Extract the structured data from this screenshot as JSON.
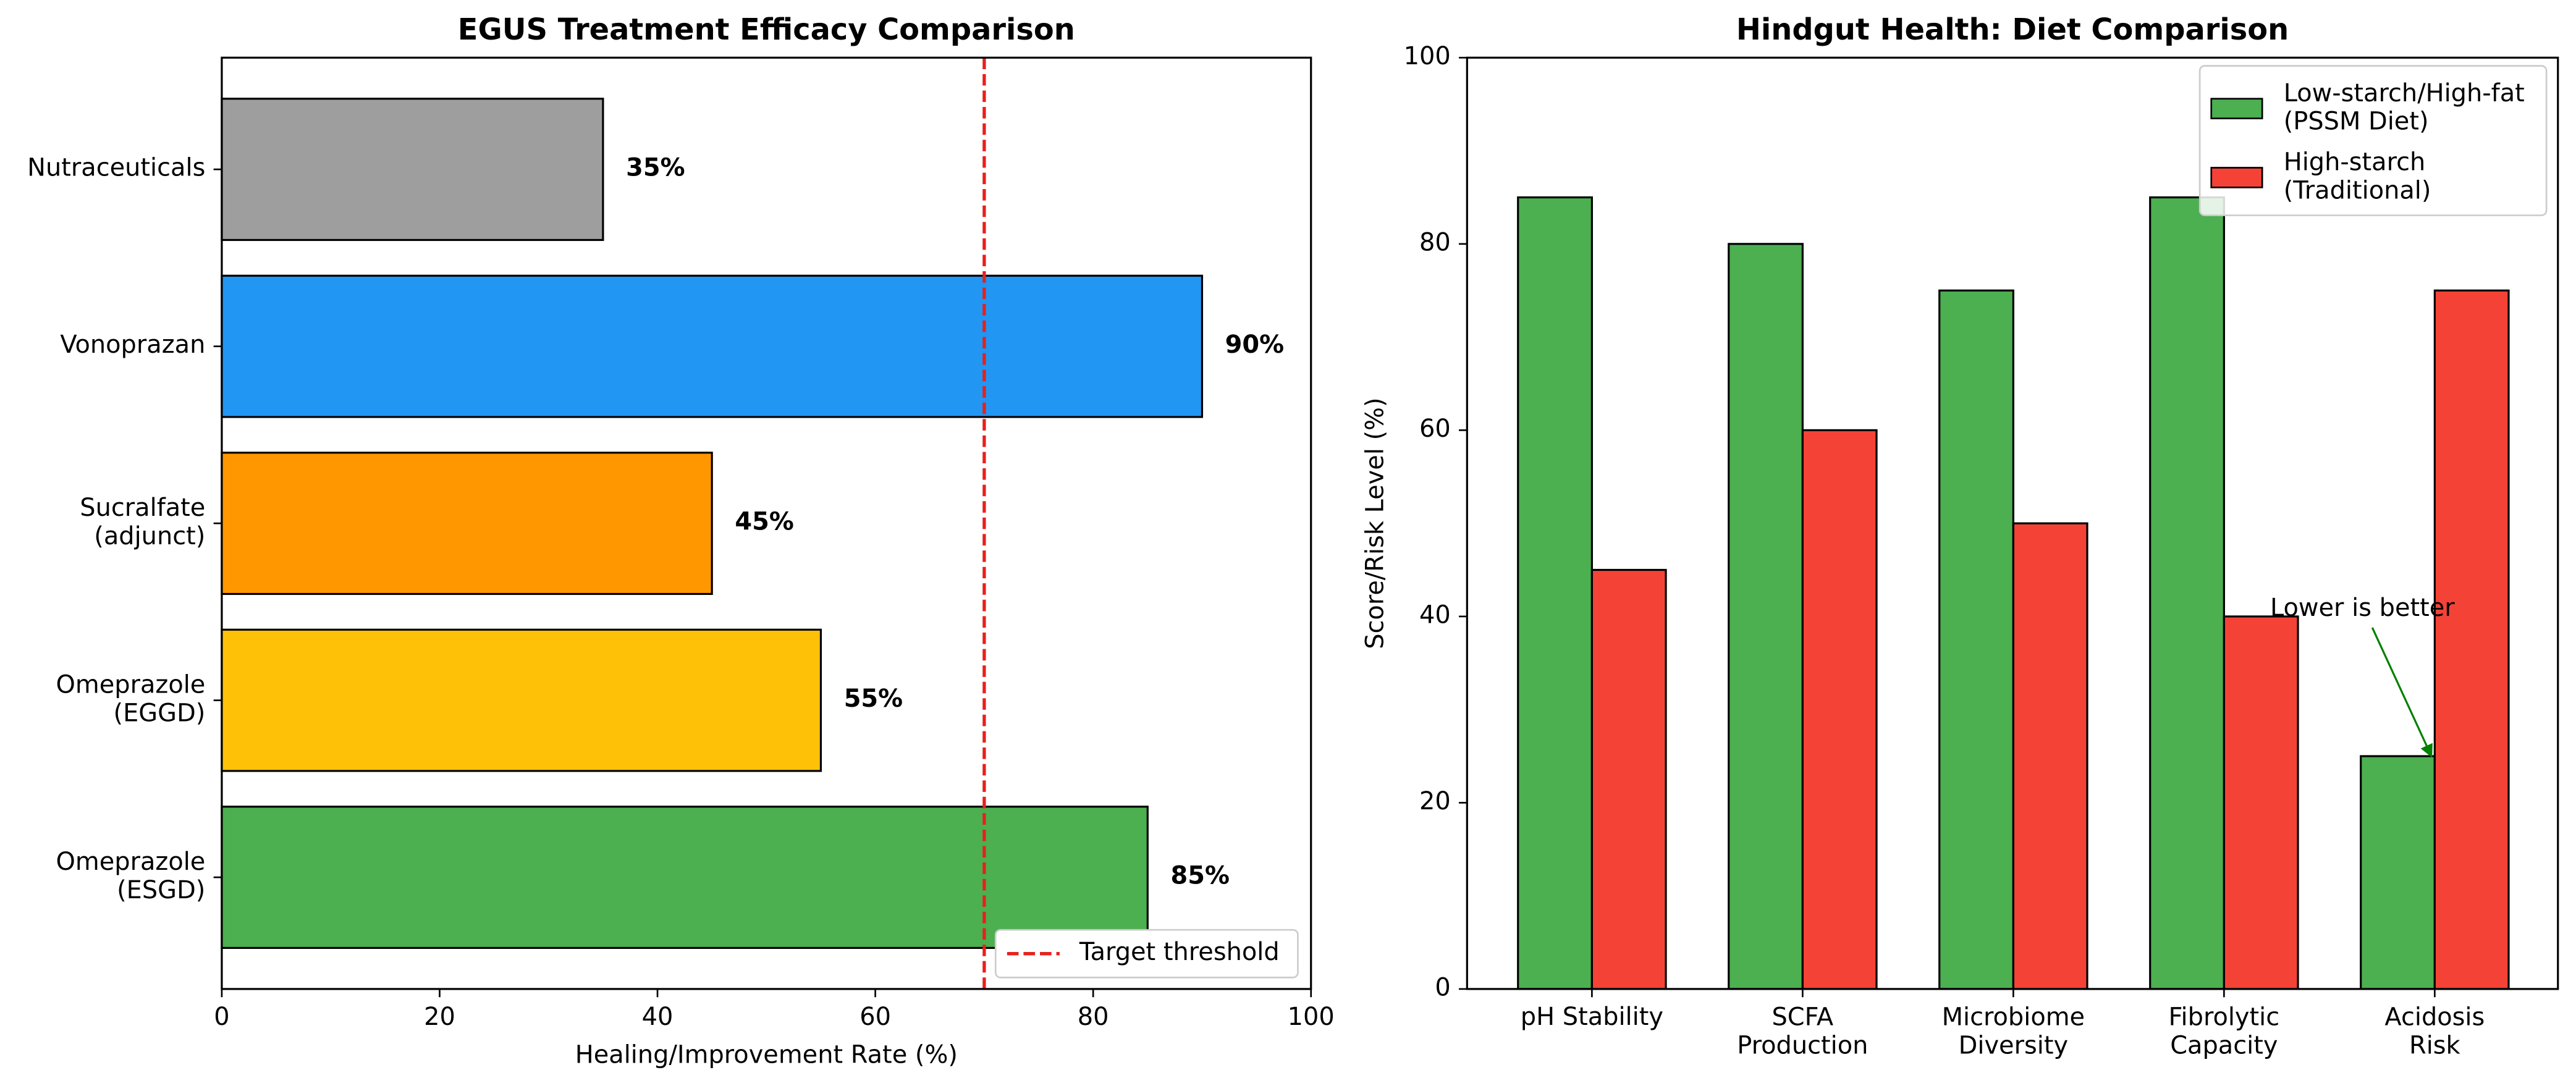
{
  "chart_data": [
    {
      "type": "bar",
      "horizontal": true,
      "title": "EGUS Treatment Efficacy Comparison",
      "categories": [
        "Omeprazole\n(ESGD)",
        "Omeprazole\n(EGGD)",
        "Sucralfate\n(adjunct)",
        "Vonoprazan",
        "Nutraceuticals"
      ],
      "values": [
        85,
        55,
        45,
        90,
        35
      ],
      "value_labels": [
        "85%",
        "55%",
        "45%",
        "90%",
        "35%"
      ],
      "colors": [
        "#4caf50",
        "#ffc107",
        "#ff9800",
        "#2196f3",
        "#9e9e9e"
      ],
      "xlabel": "Healing/Improvement Rate (%)",
      "xlim": [
        0,
        100
      ],
      "xticks": [
        0,
        20,
        40,
        60,
        80,
        100
      ],
      "reference_line": {
        "value": 70,
        "label": "Target threshold",
        "color": "#e8201c"
      },
      "legend": "lower right"
    },
    {
      "type": "bar",
      "title": "Hindgut Health: Diet Comparison",
      "categories": [
        "pH Stability",
        "SCFA\nProduction",
        "Microbiome\nDiversity",
        "Fibrolytic\nCapacity",
        "Acidosis\nRisk"
      ],
      "series": [
        {
          "name": "Low-starch/High-fat\n(PSSM Diet)",
          "color": "#4caf50",
          "values": [
            85,
            80,
            75,
            85,
            25
          ]
        },
        {
          "name": "High-starch\n(Traditional)",
          "color": "#f44336",
          "values": [
            45,
            60,
            50,
            40,
            75
          ]
        }
      ],
      "ylabel": "Score/Risk Level (%)",
      "ylim": [
        0,
        100
      ],
      "yticks": [
        0,
        20,
        40,
        60,
        80,
        100
      ],
      "annotation": {
        "text": "Lower is better",
        "color": "green"
      },
      "legend": "upper right"
    }
  ]
}
